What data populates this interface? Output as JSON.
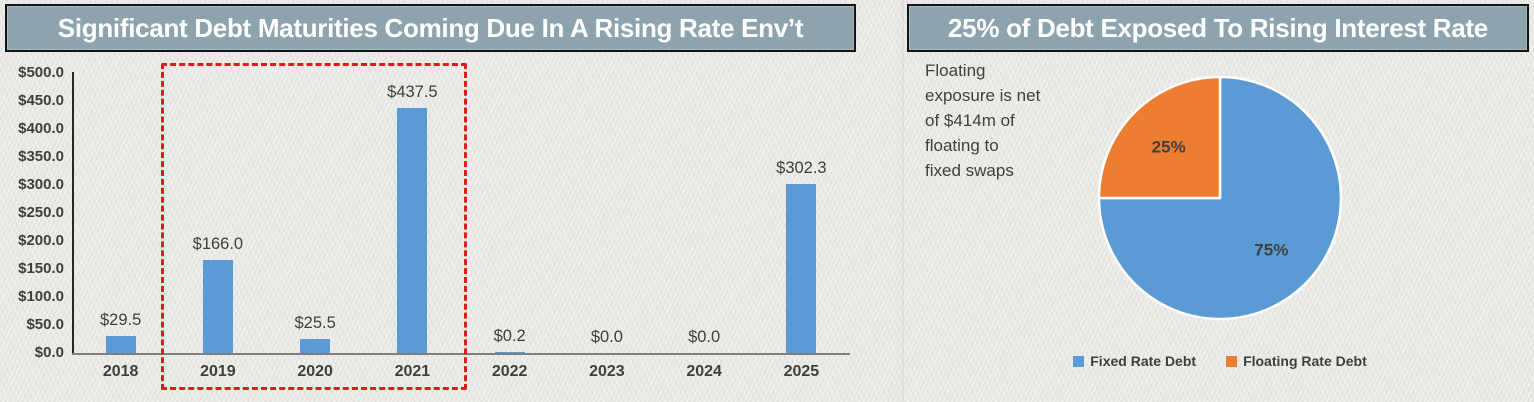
{
  "chart_data": [
    {
      "type": "bar",
      "title": "Significant Debt Maturities Coming Due In A Rising Rate Env’t",
      "categories": [
        "2018",
        "2019",
        "2020",
        "2021",
        "2022",
        "2023",
        "2024",
        "2025"
      ],
      "values": [
        29.5,
        166.0,
        25.5,
        437.5,
        0.2,
        0.0,
        0.0,
        302.3
      ],
      "value_labels": [
        "$29.5",
        "$166.0",
        "$25.5",
        "$437.5",
        "$0.2",
        "$0.0",
        "$0.0",
        "$302.3"
      ],
      "xlabel": "",
      "ylabel": "",
      "ylim": [
        0,
        500
      ],
      "y_ticks": [
        "$0.0",
        "$50.0",
        "$100.0",
        "$150.0",
        "$200.0",
        "$250.0",
        "$300.0",
        "$350.0",
        "$400.0",
        "$450.0",
        "$500.0"
      ],
      "grid": false,
      "legend": false,
      "bar_color": "#5b9bd5",
      "highlight_box": {
        "from_category": "2019",
        "to_category": "2021",
        "start_index": 1,
        "end_index": 3,
        "color": "#e21a1a",
        "style": "dashed"
      }
    },
    {
      "type": "pie",
      "title": "25% of Debt Exposed To Rising Interest Rate",
      "annotation": "Floating\nexposure is net\nof $414m of\nfloating to\nfixed swaps",
      "slices": [
        {
          "name": "Fixed Rate Debt",
          "value": 75,
          "label": "75%",
          "color": "#5b9bd5"
        },
        {
          "name": "Floating Rate Debt",
          "value": 25,
          "label": "25%",
          "color": "#ed7d31"
        }
      ],
      "start_angle_deg": 0,
      "legend_position": "bottom"
    }
  ],
  "theme": {
    "title_bar_bg": "#8da4ae",
    "title_bar_border": "#141414",
    "title_text_color": "#ffffff",
    "page_bg": "#e9e8e5",
    "text_color": "#3f3f3f",
    "pie_slice_outline": "#ffffff"
  }
}
